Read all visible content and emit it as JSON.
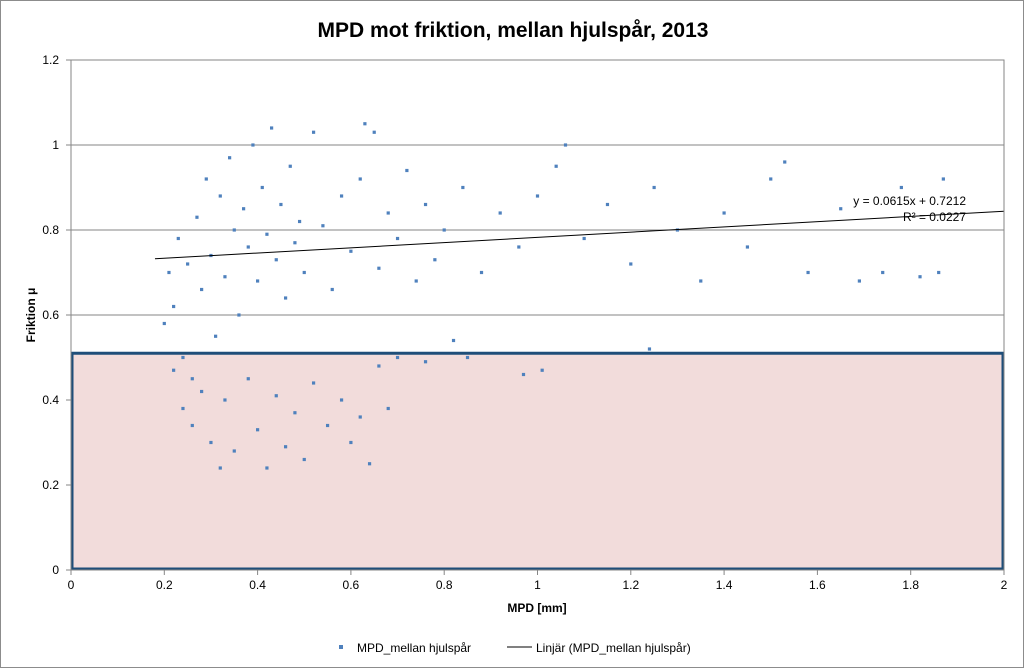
{
  "chart_data": {
    "type": "scatter",
    "title": "MPD mot friktion, mellan hjulspår, 2013",
    "xlabel": "MPD [mm]",
    "ylabel": "Friktion μ",
    "xlim": [
      0,
      2
    ],
    "ylim": [
      0,
      1.2
    ],
    "x_ticks": [
      "0",
      "0.2",
      "0.4",
      "0.6",
      "0.8",
      "1",
      "1.2",
      "1.4",
      "1.6",
      "1.8",
      "2"
    ],
    "y_ticks": [
      "0",
      "0.2",
      "0.4",
      "0.6",
      "0.8",
      "1",
      "1.2"
    ],
    "grid": "horizontal",
    "legend_position": "bottom",
    "series": [
      {
        "name": "MPD_mellan hjulspår",
        "color": "#4f81bd",
        "marker": "square",
        "note_points": "dense cloud; sample of representative points",
        "points": [
          [
            0.2,
            0.58
          ],
          [
            0.21,
            0.7
          ],
          [
            0.22,
            0.62
          ],
          [
            0.23,
            0.78
          ],
          [
            0.24,
            0.5
          ],
          [
            0.25,
            0.72
          ],
          [
            0.26,
            0.45
          ],
          [
            0.27,
            0.83
          ],
          [
            0.28,
            0.66
          ],
          [
            0.29,
            0.92
          ],
          [
            0.3,
            0.74
          ],
          [
            0.31,
            0.55
          ],
          [
            0.32,
            0.88
          ],
          [
            0.33,
            0.69
          ],
          [
            0.34,
            0.97
          ],
          [
            0.35,
            0.8
          ],
          [
            0.36,
            0.6
          ],
          [
            0.37,
            0.85
          ],
          [
            0.38,
            0.76
          ],
          [
            0.39,
            1.0
          ],
          [
            0.4,
            0.68
          ],
          [
            0.41,
            0.9
          ],
          [
            0.42,
            0.79
          ],
          [
            0.43,
            1.04
          ],
          [
            0.44,
            0.73
          ],
          [
            0.45,
            0.86
          ],
          [
            0.46,
            0.64
          ],
          [
            0.47,
            0.95
          ],
          [
            0.48,
            0.77
          ],
          [
            0.49,
            0.82
          ],
          [
            0.5,
            0.7
          ],
          [
            0.52,
            1.03
          ],
          [
            0.54,
            0.81
          ],
          [
            0.56,
            0.66
          ],
          [
            0.58,
            0.88
          ],
          [
            0.6,
            0.75
          ],
          [
            0.62,
            0.92
          ],
          [
            0.63,
            1.05
          ],
          [
            0.65,
            1.03
          ],
          [
            0.66,
            0.71
          ],
          [
            0.68,
            0.84
          ],
          [
            0.7,
            0.78
          ],
          [
            0.72,
            0.94
          ],
          [
            0.74,
            0.68
          ],
          [
            0.76,
            0.86
          ],
          [
            0.78,
            0.73
          ],
          [
            0.8,
            0.8
          ],
          [
            0.84,
            0.9
          ],
          [
            0.88,
            0.7
          ],
          [
            0.92,
            0.84
          ],
          [
            0.96,
            0.76
          ],
          [
            1.0,
            0.88
          ],
          [
            1.04,
            0.95
          ],
          [
            1.06,
            1.0
          ],
          [
            1.1,
            0.78
          ],
          [
            1.15,
            0.86
          ],
          [
            1.2,
            0.72
          ],
          [
            1.25,
            0.9
          ],
          [
            1.3,
            0.8
          ],
          [
            1.35,
            0.68
          ],
          [
            1.4,
            0.84
          ],
          [
            1.45,
            0.76
          ],
          [
            1.5,
            0.92
          ],
          [
            1.53,
            0.96
          ],
          [
            1.58,
            0.7
          ],
          [
            1.65,
            0.85
          ],
          [
            1.69,
            0.68
          ],
          [
            1.74,
            0.7
          ],
          [
            1.78,
            0.9
          ],
          [
            1.82,
            0.69
          ],
          [
            1.86,
            0.7
          ],
          [
            1.87,
            0.92
          ],
          [
            0.22,
            0.47
          ],
          [
            0.24,
            0.38
          ],
          [
            0.26,
            0.34
          ],
          [
            0.28,
            0.42
          ],
          [
            0.3,
            0.3
          ],
          [
            0.32,
            0.24
          ],
          [
            0.33,
            0.4
          ],
          [
            0.35,
            0.28
          ],
          [
            0.38,
            0.45
          ],
          [
            0.4,
            0.33
          ],
          [
            0.42,
            0.24
          ],
          [
            0.44,
            0.41
          ],
          [
            0.46,
            0.29
          ],
          [
            0.48,
            0.37
          ],
          [
            0.5,
            0.26
          ],
          [
            0.52,
            0.44
          ],
          [
            0.55,
            0.34
          ],
          [
            0.58,
            0.4
          ],
          [
            0.6,
            0.3
          ],
          [
            0.62,
            0.36
          ],
          [
            0.64,
            0.25
          ],
          [
            0.66,
            0.48
          ],
          [
            0.68,
            0.38
          ],
          [
            0.7,
            0.5
          ],
          [
            0.76,
            0.49
          ],
          [
            0.85,
            0.5
          ],
          [
            0.97,
            0.46
          ],
          [
            1.01,
            0.47
          ],
          [
            1.24,
            0.52
          ],
          [
            0.82,
            0.54
          ]
        ]
      }
    ],
    "trendline": {
      "name": "Linjär (MPD_mellan hjulspår)",
      "slope": 0.0615,
      "intercept": 0.7212,
      "x_range": [
        0.18,
        2.0
      ],
      "equation": "y = 0.0615x + 0.7212",
      "r2": "R² = 0.0227"
    },
    "highlight_region": {
      "x_range": [
        0,
        2
      ],
      "y_range": [
        0,
        0.51
      ],
      "fill": "#f2dcdb",
      "stroke": "#1f4e79"
    }
  }
}
